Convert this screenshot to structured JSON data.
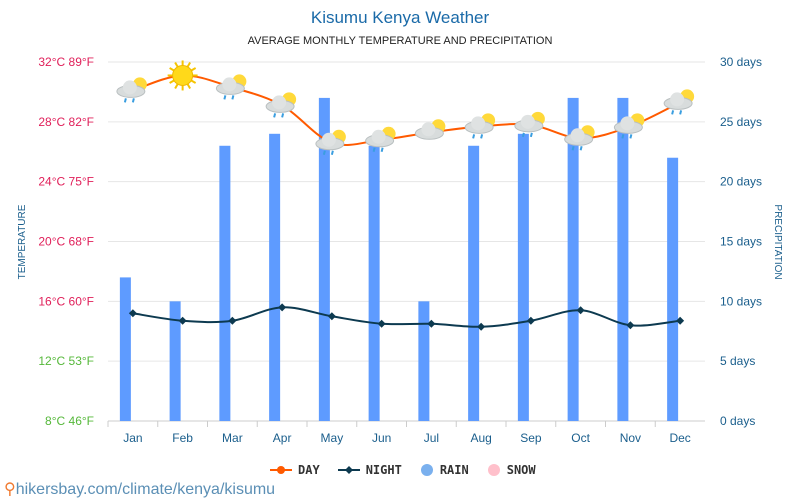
{
  "chart_data": {
    "type": "bar+line",
    "title": "Kisumu Kenya Weather",
    "subtitle": "AVERAGE MONTHLY TEMPERATURE AND PRECIPITATION",
    "ylabel_left": "TEMPERATURE",
    "ylabel_right": "PRECIPITATION",
    "categories": [
      "Jan",
      "Feb",
      "Mar",
      "Apr",
      "May",
      "Jun",
      "Jul",
      "Aug",
      "Sep",
      "Oct",
      "Nov",
      "Dec"
    ],
    "left_ticks": [
      {
        "v": 8,
        "label": "8°C 46°F",
        "color": "#55b83a"
      },
      {
        "v": 12,
        "label": "12°C 53°F",
        "color": "#55b83a"
      },
      {
        "v": 16,
        "label": "16°C 60°F",
        "color": "#e0205a"
      },
      {
        "v": 20,
        "label": "20°C 68°F",
        "color": "#e0205a"
      },
      {
        "v": 24,
        "label": "24°C 75°F",
        "color": "#e0205a"
      },
      {
        "v": 28,
        "label": "28°C 82°F",
        "color": "#e0205a"
      },
      {
        "v": 32,
        "label": "32°C 89°F",
        "color": "#e0205a"
      }
    ],
    "right_ticks": [
      {
        "v": 0,
        "label": "0 days"
      },
      {
        "v": 5,
        "label": "5 days"
      },
      {
        "v": 10,
        "label": "10 days"
      },
      {
        "v": 15,
        "label": "15 days"
      },
      {
        "v": 20,
        "label": "20 days"
      },
      {
        "v": 25,
        "label": "25 days"
      },
      {
        "v": 30,
        "label": "30 days"
      }
    ],
    "ylim_left": [
      8,
      32
    ],
    "ylim_right": [
      0,
      30
    ],
    "series": [
      {
        "name": "DAY",
        "type": "line",
        "color": "#ff5a00",
        "values": [
          30.1,
          31.1,
          30.3,
          29.1,
          26.6,
          26.8,
          27.3,
          27.7,
          27.8,
          26.9,
          27.7,
          29.3
        ]
      },
      {
        "name": "NIGHT",
        "type": "line",
        "color": "#0d3a50",
        "values": [
          15.2,
          14.7,
          14.7,
          15.6,
          15.0,
          14.5,
          14.5,
          14.3,
          14.7,
          15.4,
          14.4,
          14.7
        ]
      },
      {
        "name": "RAIN",
        "type": "bar",
        "color": "#5e9bff",
        "values": [
          12,
          10,
          23,
          24,
          27,
          23,
          10,
          23,
          24,
          27,
          27,
          22
        ]
      },
      {
        "name": "SNOW",
        "type": "bar",
        "color": "#ffb6c8",
        "values": [
          0,
          0,
          0,
          0,
          0,
          0,
          0,
          0,
          0,
          0,
          0,
          0
        ]
      }
    ],
    "icons": [
      "cloud-rain",
      "sun",
      "cloud-rain",
      "cloud-rain",
      "cloud-rain",
      "cloud-rain",
      "cloud-sun",
      "cloud-rain",
      "cloud-rain",
      "cloud-rain",
      "cloud-rain",
      "cloud-rain"
    ],
    "legend": "bottom"
  },
  "footer": "hikersbay.com/climate/kenya/kisumu"
}
